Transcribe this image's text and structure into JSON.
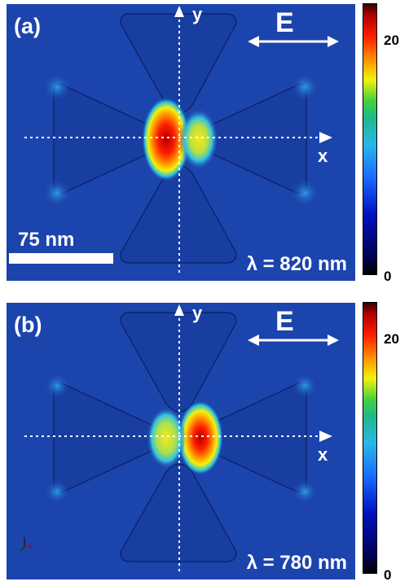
{
  "panels": [
    {
      "label": "(a)",
      "axis_x": "x",
      "axis_y": "y",
      "field": "E",
      "wavelength": "λ = 820 nm",
      "scale_bar": "75  nm"
    },
    {
      "label": "(b)",
      "axis_x": "x",
      "axis_y": "y",
      "field": "E",
      "wavelength": "λ = 780 nm"
    }
  ],
  "colorbar": {
    "max": "20",
    "min": "0"
  },
  "colors": {
    "background": "#1a3fa8",
    "hotspot": "#ff1d00",
    "dark_triangle": "#102a80"
  }
}
